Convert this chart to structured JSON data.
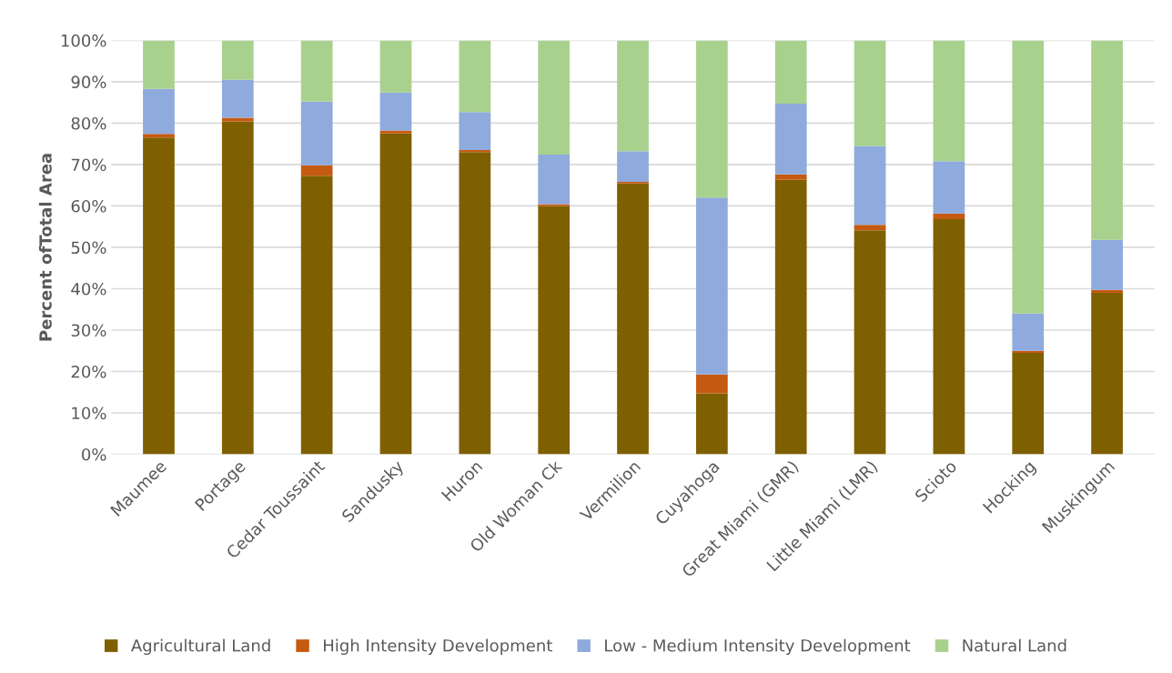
{
  "chart_data": {
    "type": "bar",
    "stacked": true,
    "ylabel": "Percent ofTotal Area",
    "categories": [
      "Maumee",
      "Portage",
      "Cedar Toussaint",
      "Sandusky",
      "Huron",
      "Old Woman Ck",
      "Vermilion",
      "Cuyahoga",
      "Great Miami (GMR)",
      "Little Miami (LMR)",
      "Scioto",
      "Hocking",
      "Muskingum"
    ],
    "series": [
      {
        "name": "Agricultural Land",
        "color": "#7f6000",
        "values": [
          76.5,
          80.4,
          67.3,
          77.5,
          73.0,
          60.0,
          65.4,
          14.7,
          66.3,
          54.1,
          56.8,
          24.5,
          39.0
        ]
      },
      {
        "name": "High Intensity Development",
        "color": "#c55a11",
        "values": [
          0.9,
          0.9,
          2.5,
          0.7,
          0.5,
          0.4,
          0.4,
          4.6,
          1.3,
          1.3,
          1.4,
          0.5,
          0.7
        ]
      },
      {
        "name": "Low - Medium Intensity Development",
        "color": "#8faadc",
        "values": [
          10.9,
          9.2,
          15.4,
          9.2,
          9.2,
          12.0,
          7.4,
          42.7,
          17.1,
          19.1,
          12.6,
          9.0,
          12.1
        ]
      },
      {
        "name": "Natural Land",
        "color": "#a9d18e",
        "values": [
          11.7,
          9.5,
          14.8,
          12.6,
          17.3,
          27.6,
          26.8,
          38.0,
          15.3,
          25.5,
          29.2,
          66.0,
          48.2
        ]
      }
    ],
    "ylim": [
      0,
      100
    ],
    "yticks": [
      {
        "value": 0,
        "label": "0%"
      },
      {
        "value": 10,
        "label": "10%"
      },
      {
        "value": 20,
        "label": "20%"
      },
      {
        "value": 30,
        "label": "30%"
      },
      {
        "value": 40,
        "label": "40%"
      },
      {
        "value": 50,
        "label": "50%"
      },
      {
        "value": 60,
        "label": "60%"
      },
      {
        "value": 70,
        "label": "70%"
      },
      {
        "value": 80,
        "label": "80%"
      },
      {
        "value": 90,
        "label": "90%"
      },
      {
        "value": 100,
        "label": "100%"
      }
    ],
    "grid": "y",
    "legend": "bottom"
  }
}
